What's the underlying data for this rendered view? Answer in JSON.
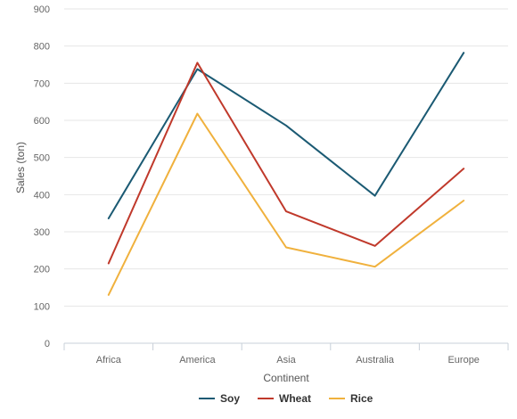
{
  "chart_data": {
    "type": "line",
    "categories": [
      "Africa",
      "America",
      "Asia",
      "Australia",
      "Europe"
    ],
    "series": [
      {
        "name": "Soy",
        "color": "#1b5a73",
        "values": [
          336,
          738,
          586,
          397,
          782
        ]
      },
      {
        "name": "Wheat",
        "color": "#c0392b",
        "values": [
          215,
          755,
          355,
          262,
          470
        ]
      },
      {
        "name": "Rice",
        "color": "#f0b13d",
        "values": [
          130,
          618,
          258,
          206,
          384
        ]
      }
    ],
    "xlabel": "Continent",
    "ylabel": "Sales (ton)",
    "ylim": [
      0,
      900
    ],
    "yticks": [
      0,
      100,
      200,
      300,
      400,
      500,
      600,
      700,
      800,
      900
    ],
    "grid": true,
    "legend_position": "bottom"
  }
}
